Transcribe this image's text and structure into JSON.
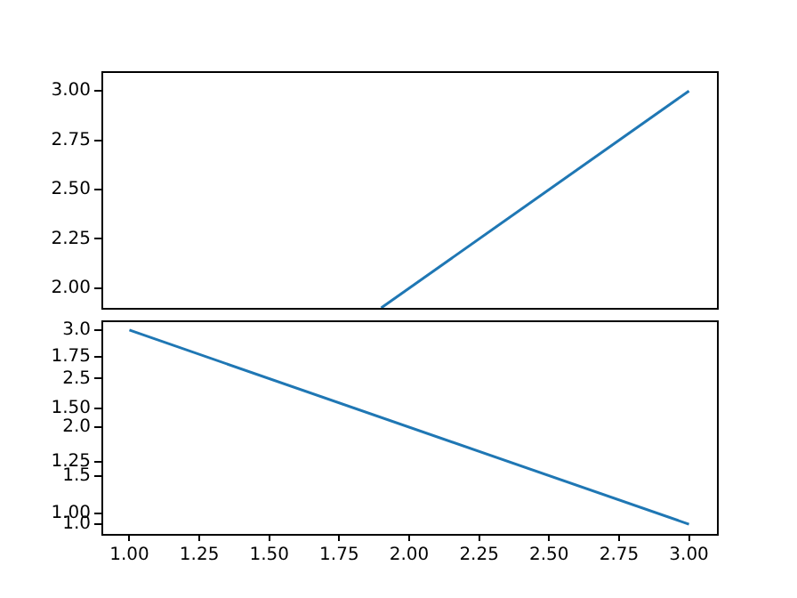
{
  "chart_data": [
    {
      "type": "line",
      "x": [
        1.9,
        3
      ],
      "series": [
        {
          "color": "#1f77b4",
          "values": [
            1.9,
            3
          ]
        }
      ],
      "xlim": [
        0.9,
        3.1
      ],
      "ylim": [
        1.9,
        3.1
      ],
      "yticks": [
        {
          "value": 2,
          "label": "2.00"
        },
        {
          "value": 2.25,
          "label": "2.25"
        },
        {
          "value": 2.5,
          "label": "2.50"
        },
        {
          "value": 2.75,
          "label": "2.75"
        },
        {
          "value": 3,
          "label": "3.00"
        }
      ],
      "tick_labels": "y",
      "grid": false,
      "legend": false
    },
    {
      "type": "line",
      "x": [
        1,
        3
      ],
      "series": [
        {
          "color": "#1f77b4",
          "values": [
            3,
            1
          ]
        }
      ],
      "xlim": [
        0.9,
        3.1
      ],
      "xticks": [
        {
          "value": 1,
          "label": "1.00"
        },
        {
          "value": 1.25,
          "label": "1.25"
        },
        {
          "value": 1.5,
          "label": "1.50"
        },
        {
          "value": 1.75,
          "label": "1.75"
        },
        {
          "value": 2,
          "label": "2.00"
        },
        {
          "value": 2.25,
          "label": "2.25"
        },
        {
          "value": 2.5,
          "label": "2.50"
        },
        {
          "value": 2.75,
          "label": "2.75"
        },
        {
          "value": 3,
          "label": "3.00"
        }
      ],
      "ylim": [
        0.9,
        3.1
      ],
      "yticks": [
        {
          "value": 1,
          "label": "1.0"
        },
        {
          "value": 1.5,
          "label": "1.5"
        },
        {
          "value": 2,
          "label": "2.0"
        },
        {
          "value": 2.5,
          "label": "2.5"
        },
        {
          "value": 3,
          "label": "3.0"
        }
      ],
      "y2lim": [
        0.9,
        1.92
      ],
      "y2ticks": [
        {
          "value": 1,
          "label": "1.00"
        },
        {
          "value": 1.25,
          "label": "1.25"
        },
        {
          "value": 1.5,
          "label": "1.50"
        },
        {
          "value": 1.75,
          "label": "1.75"
        }
      ],
      "grid": false,
      "legend": false
    }
  ]
}
